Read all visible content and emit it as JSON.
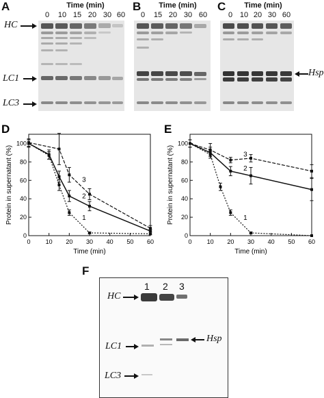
{
  "panels": {
    "A": {
      "letter": "A",
      "time_title": "Time (min)",
      "times": [
        "0",
        "10",
        "15",
        "20",
        "30",
        "60"
      ],
      "bands": [
        "HC",
        "LC1",
        "LC3"
      ]
    },
    "B": {
      "letter": "B",
      "time_title": "Time (min)",
      "times": [
        "0",
        "15",
        "20",
        "30",
        "60"
      ]
    },
    "C": {
      "letter": "C",
      "time_title": "Time (min)",
      "times": [
        "0",
        "10",
        "20",
        "30",
        "60"
      ],
      "band": "Hsp"
    },
    "F": {
      "letter": "F",
      "lanes": [
        "1",
        "2",
        "3"
      ],
      "bands": [
        "HC",
        "LC1",
        "LC3"
      ],
      "band_right": "Hsp"
    }
  },
  "chart_data": [
    {
      "panel": "D",
      "type": "line",
      "xlabel": "Time (min)",
      "ylabel": "Protein in supernatant (%)",
      "xlim": [
        0,
        60
      ],
      "ylim": [
        0,
        110
      ],
      "xticks": [
        "0",
        "10",
        "20",
        "30",
        "40",
        "50",
        "60"
      ],
      "yticks": [
        "0",
        "20",
        "40",
        "60",
        "80",
        "100"
      ],
      "series": [
        {
          "name": "1",
          "style": "dotted",
          "x": [
            0,
            10,
            15,
            20,
            30,
            60
          ],
          "y": [
            100,
            87,
            55,
            25,
            3,
            2
          ],
          "err": [
            4,
            4,
            6,
            3,
            1,
            1
          ]
        },
        {
          "name": "2",
          "style": "solid",
          "x": [
            0,
            10,
            15,
            20,
            30,
            60
          ],
          "y": [
            100,
            88,
            64,
            43,
            32,
            5
          ],
          "err": [
            4,
            5,
            6,
            6,
            5,
            2
          ]
        },
        {
          "name": "3",
          "style": "dashed",
          "x": [
            0,
            15,
            20,
            30,
            60
          ],
          "y": [
            101,
            94,
            66,
            45,
            8
          ],
          "err": [
            4,
            17,
            8,
            6,
            3
          ]
        }
      ]
    },
    {
      "panel": "E",
      "type": "line",
      "xlabel": "Time (min)",
      "ylabel": "Protein in supernatant (%)",
      "xlim": [
        0,
        60
      ],
      "ylim": [
        0,
        110
      ],
      "xticks": [
        "0",
        "10",
        "20",
        "30",
        "40",
        "50",
        "60"
      ],
      "yticks": [
        "0",
        "20",
        "40",
        "60",
        "80",
        "100"
      ],
      "series": [
        {
          "name": "1",
          "style": "dotted",
          "x": [
            0,
            10,
            15,
            20,
            30,
            60
          ],
          "y": [
            100,
            88,
            53,
            25,
            3,
            0
          ],
          "err": [
            4,
            4,
            4,
            3,
            1,
            0
          ]
        },
        {
          "name": "2",
          "style": "solid",
          "x": [
            0,
            10,
            20,
            30,
            60
          ],
          "y": [
            100,
            90,
            70,
            65,
            50
          ],
          "err": [
            4,
            6,
            5,
            9,
            12
          ]
        },
        {
          "name": "3",
          "style": "dashed",
          "x": [
            0,
            10,
            20,
            30,
            60
          ],
          "y": [
            100,
            93,
            82,
            84,
            70
          ],
          "err": [
            4,
            7,
            3,
            4,
            7
          ]
        }
      ]
    }
  ]
}
